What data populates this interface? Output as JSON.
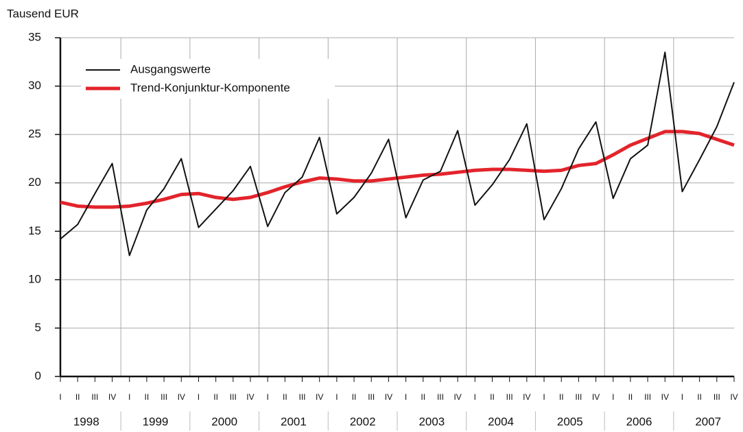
{
  "chart_data": {
    "type": "line",
    "y_label": "Tausend EUR",
    "categories": [
      "I",
      "II",
      "III",
      "IV",
      "I",
      "II",
      "III",
      "IV",
      "I",
      "II",
      "III",
      "IV",
      "I",
      "II",
      "III",
      "IV",
      "I",
      "II",
      "III",
      "IV",
      "I",
      "II",
      "III",
      "IV",
      "I",
      "II",
      "III",
      "IV",
      "I",
      "II",
      "III",
      "IV",
      "I",
      "II",
      "III",
      "IV",
      "I",
      "II",
      "III",
      "IV"
    ],
    "years": [
      "1998",
      "1999",
      "2000",
      "2001",
      "2002",
      "2003",
      "2004",
      "2005",
      "2006",
      "2007"
    ],
    "series": [
      {
        "name": "Ausgangswerte",
        "color": "#111111",
        "values": [
          14.2,
          15.7,
          18.9,
          22.0,
          12.5,
          17.2,
          19.4,
          22.5,
          15.4,
          17.3,
          19.2,
          21.7,
          15.5,
          19.0,
          20.6,
          24.7,
          16.8,
          18.5,
          21.0,
          24.5,
          16.4,
          20.3,
          21.2,
          25.4,
          17.7,
          19.8,
          22.4,
          26.1,
          16.2,
          19.4,
          23.5,
          26.3,
          18.4,
          22.5,
          23.9,
          33.5,
          19.1,
          22.4,
          25.8,
          30.4
        ]
      },
      {
        "name": "Trend-Konjunktur-Komponente",
        "color": "#e3242b",
        "values": [
          18.0,
          17.6,
          17.5,
          17.5,
          17.6,
          17.9,
          18.3,
          18.8,
          18.9,
          18.5,
          18.3,
          18.5,
          19.0,
          19.6,
          20.1,
          20.5,
          20.4,
          20.2,
          20.2,
          20.4,
          20.6,
          20.8,
          20.9,
          21.1,
          21.3,
          21.4,
          21.4,
          21.3,
          21.2,
          21.3,
          21.8,
          22.0,
          22.9,
          23.9,
          24.6,
          25.3,
          25.3,
          25.1,
          24.5,
          23.9
        ]
      }
    ],
    "ylim": [
      0,
      35
    ],
    "yticks": [
      0,
      5,
      10,
      15,
      20,
      25,
      30,
      35
    ],
    "grid": true,
    "legend": "upper left"
  }
}
